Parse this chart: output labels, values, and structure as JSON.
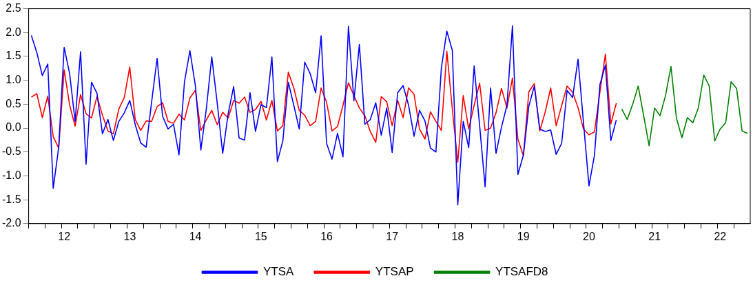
{
  "chart_data": {
    "type": "line",
    "categories": [
      null,
      null,
      null,
      null,
      null,
      null,
      "12",
      null,
      null,
      null,
      null,
      null,
      null,
      null,
      null,
      null,
      null,
      null,
      "13",
      null,
      null,
      null,
      null,
      null,
      null,
      null,
      null,
      null,
      null,
      null,
      "14",
      null,
      null,
      null,
      null,
      null,
      null,
      null,
      null,
      null,
      null,
      null,
      "15",
      null,
      null,
      null,
      null,
      null,
      null,
      null,
      null,
      null,
      null,
      null,
      "16",
      null,
      null,
      null,
      null,
      null,
      null,
      null,
      null,
      null,
      null,
      null,
      "17",
      null,
      null,
      null,
      null,
      null,
      null,
      null,
      null,
      null,
      null,
      null,
      "18",
      null,
      null,
      null,
      null,
      null,
      null,
      null,
      null,
      null,
      null,
      null,
      "19",
      null,
      null,
      null,
      null,
      null,
      null,
      null,
      null,
      null,
      null,
      null,
      "20",
      null,
      null,
      null,
      null,
      null,
      null,
      null,
      null,
      null,
      null,
      null,
      "21",
      null,
      null,
      null,
      null,
      null,
      null,
      null,
      null,
      null,
      null,
      null,
      "22",
      null,
      null,
      null,
      null,
      null
    ],
    "series": [
      {
        "name": "YTSA",
        "color": "#0000ff",
        "values": [
          1.94,
          1.58,
          1.1,
          1.34,
          -1.26,
          -0.4,
          1.69,
          1.14,
          0.14,
          1.6,
          -0.76,
          0.96,
          0.73,
          -0.12,
          0.18,
          -0.26,
          0.14,
          0.32,
          0.58,
          0.07,
          -0.31,
          -0.4,
          0.55,
          1.46,
          0.25,
          -0.02,
          0.08,
          -0.56,
          0.96,
          1.62,
          0.89,
          -0.46,
          0.4,
          1.49,
          0.52,
          -0.53,
          0.3,
          0.87,
          -0.21,
          -0.25,
          0.74,
          -0.07,
          0.49,
          0.43,
          1.49,
          -0.7,
          -0.27,
          0.96,
          0.48,
          -0.02,
          1.38,
          1.14,
          0.74,
          1.93,
          -0.32,
          -0.65,
          -0.11,
          -0.6,
          2.13,
          0.57,
          1.75,
          0.08,
          0.18,
          0.53,
          -0.15,
          0.42,
          -0.51,
          0.74,
          0.89,
          0.48,
          -0.17,
          0.37,
          0.15,
          -0.42,
          -0.5,
          1.26,
          2.03,
          1.63,
          -1.61,
          0.14,
          -0.41,
          1.3,
          0.05,
          -1.23,
          0.84,
          -0.53,
          0.02,
          0.48,
          2.14,
          -0.97,
          -0.57,
          0.46,
          0.88,
          -0.02,
          -0.07,
          -0.04,
          -0.55,
          -0.32,
          0.79,
          0.64,
          1.44,
          0.11,
          -1.21,
          -0.57,
          0.91,
          1.32,
          -0.26,
          0.17,
          null,
          null,
          null,
          null,
          null,
          null,
          null,
          null,
          null,
          null,
          null,
          null,
          null,
          null,
          null,
          null,
          null,
          null,
          null,
          null,
          null,
          null,
          null,
          null
        ]
      },
      {
        "name": "YTSAP",
        "color": "#ff0000",
        "values": [
          0.65,
          0.72,
          0.22,
          0.67,
          -0.18,
          -0.42,
          1.22,
          0.48,
          0.04,
          0.7,
          0.3,
          0.21,
          0.66,
          0.27,
          -0.06,
          -0.12,
          0.4,
          0.64,
          1.28,
          0.18,
          -0.05,
          0.15,
          0.14,
          0.45,
          0.53,
          0.14,
          0.1,
          0.29,
          0.17,
          0.63,
          0.79,
          -0.05,
          0.17,
          0.37,
          0.07,
          0.33,
          0.21,
          0.58,
          0.52,
          0.65,
          0.33,
          0.39,
          0.56,
          0.17,
          0.58,
          -0.06,
          0.05,
          1.17,
          0.84,
          0.37,
          0.27,
          0.05,
          0.14,
          0.84,
          0.54,
          -0.06,
          0.03,
          0.48,
          0.95,
          0.68,
          0.42,
          0.26,
          -0.07,
          -0.3,
          0.66,
          0.55,
          0.05,
          0.58,
          0.22,
          0.84,
          0.71,
          -0.02,
          -0.23,
          0.34,
          0.14,
          -0.05,
          1.61,
          0.4,
          -0.72,
          0.68,
          -0.02,
          0.48,
          0.94,
          -0.05,
          0.0,
          0.32,
          0.83,
          0.42,
          1.05,
          -0.23,
          -0.58,
          0.76,
          0.93,
          -0.06,
          0.34,
          0.84,
          0.05,
          0.47,
          0.88,
          0.75,
          0.43,
          -0.02,
          -0.14,
          -0.08,
          0.75,
          1.55,
          0.09,
          0.52,
          null,
          null,
          null,
          null,
          null,
          null,
          null,
          null,
          null,
          null,
          null,
          null,
          null,
          null,
          null,
          null,
          null,
          null,
          null,
          null,
          null,
          null,
          null,
          null
        ]
      },
      {
        "name": "YTSAFD8",
        "color": "#008000",
        "values": [
          null,
          null,
          null,
          null,
          null,
          null,
          null,
          null,
          null,
          null,
          null,
          null,
          null,
          null,
          null,
          null,
          null,
          null,
          null,
          null,
          null,
          null,
          null,
          null,
          null,
          null,
          null,
          null,
          null,
          null,
          null,
          null,
          null,
          null,
          null,
          null,
          null,
          null,
          null,
          null,
          null,
          null,
          null,
          null,
          null,
          null,
          null,
          null,
          null,
          null,
          null,
          null,
          null,
          null,
          null,
          null,
          null,
          null,
          null,
          null,
          null,
          null,
          null,
          null,
          null,
          null,
          null,
          null,
          null,
          null,
          null,
          null,
          null,
          null,
          null,
          null,
          null,
          null,
          null,
          null,
          null,
          null,
          null,
          null,
          null,
          null,
          null,
          null,
          null,
          null,
          null,
          null,
          null,
          null,
          null,
          null,
          null,
          null,
          null,
          null,
          null,
          null,
          null,
          null,
          null,
          null,
          null,
          null,
          0.4,
          0.18,
          0.5,
          0.88,
          0.26,
          -0.37,
          0.42,
          0.26,
          0.68,
          1.29,
          0.21,
          -0.2,
          0.22,
          0.11,
          0.42,
          1.11,
          0.88,
          -0.27,
          -0.02,
          0.11,
          0.97,
          0.83,
          -0.06,
          -0.11
        ]
      }
    ],
    "ylim": [
      -2,
      2.5
    ],
    "yticks": [
      {
        "value": -2,
        "label": "-2.0"
      },
      -1.5,
      {
        "value": -1,
        "label": "-1.0"
      },
      -0.5,
      {
        "value": 0,
        "label": "0.0"
      },
      0.5,
      {
        "value": 1,
        "label": "1.0"
      },
      1.5,
      {
        "value": 2,
        "label": "2.0"
      },
      2.5
    ],
    "grid": false,
    "legend": "bottom",
    "marker": "none",
    "line_style": "solid"
  }
}
